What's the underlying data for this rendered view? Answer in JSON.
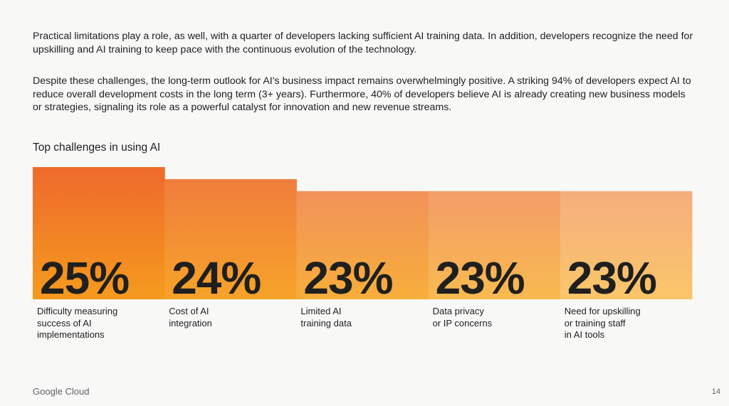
{
  "paragraphs": {
    "p1": "Practical limitations play a role, as well, with a quarter of developers lacking sufficient AI training data. In addition, developers recognize the need for upskilling and AI training to keep pace with the continuous evolution of the technology.",
    "p2": "Despite these challenges, the long-term outlook for AI's business impact remains overwhelmingly positive. A striking 94% of developers expect AI to reduce overall development costs in the long term (3+ years). Furthermore, 40% of developers believe AI is already creating new business models or strategies, signaling its role as a powerful catalyst for innovation and new revenue streams."
  },
  "chart_data": {
    "type": "bar",
    "title": "Top challenges in using AI",
    "categories": [
      "Difficulty measuring\nsuccess of AI\nimplementations",
      "Cost of AI\nintegration",
      "Limited AI\ntraining data",
      "Data privacy\nor IP concerns",
      "Need for upskilling\nor training staff\nin AI tools"
    ],
    "values": [
      25,
      24,
      23,
      23,
      23
    ],
    "value_labels": [
      "25%",
      "24%",
      "23%",
      "23%",
      "23%"
    ],
    "unit": "%",
    "colors": {
      "gradient_top": [
        "#ee6a2c",
        "#f07d3c",
        "#f1925a",
        "#f39d68",
        "#f5ae7e"
      ],
      "gradient_bottom": [
        "#f59a1e",
        "#f6a329",
        "#f7ae3a",
        "#f8ba4f",
        "#fac66a"
      ]
    }
  },
  "footer": {
    "brand": "Google Cloud",
    "page_number": "14"
  }
}
